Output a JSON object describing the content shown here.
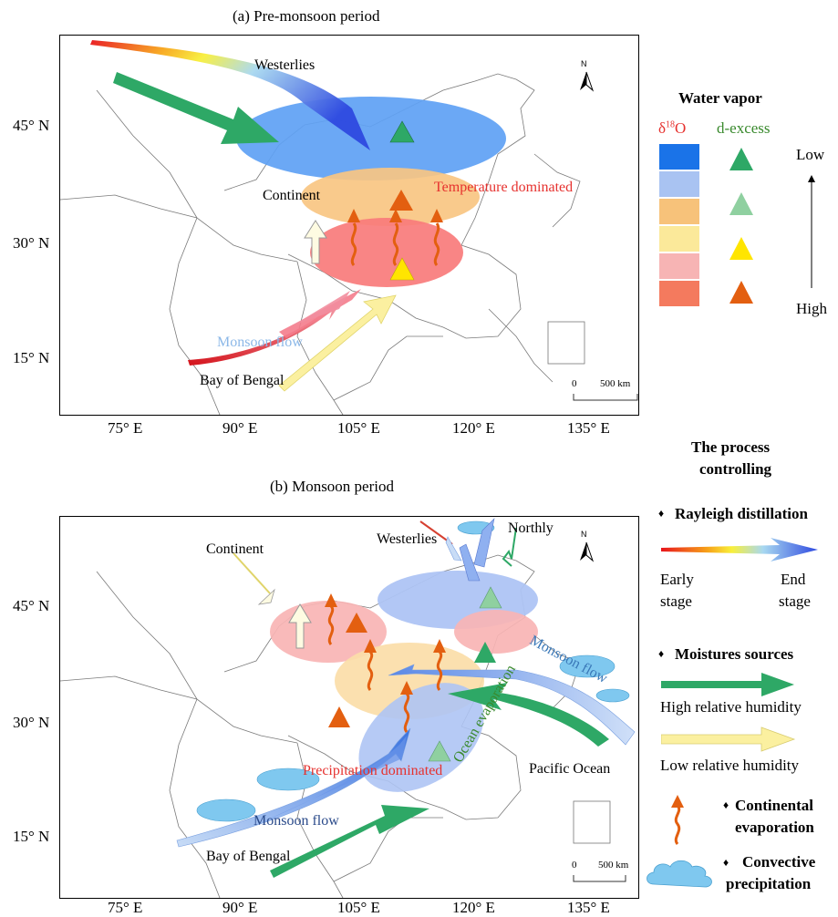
{
  "panel_a": {
    "title": "(a) Pre-monsoon period",
    "y_ticks": [
      "45° N",
      "30° N",
      "15° N"
    ],
    "x_ticks": [
      "75° E",
      "90° E",
      "105° E",
      "120° E",
      "135° E"
    ],
    "labels": {
      "westerlies": "Westerlies",
      "continent": "Continent",
      "temperature": "Temperature dominated",
      "monsoon_flow": "Monsoon flow",
      "bay": "Bay of Bengal"
    },
    "north": "N",
    "scale": {
      "zero": "0",
      "dist": "500 km"
    }
  },
  "panel_b": {
    "title": "(b) Monsoon period",
    "y_ticks": [
      "45° N",
      "30° N",
      "15° N"
    ],
    "x_ticks": [
      "75° E",
      "90° E",
      "105° E",
      "120° E",
      "135° E"
    ],
    "labels": {
      "continent": "Continent",
      "westerlies": "Westerlies",
      "northly": "Northly",
      "monsoon_flow_east": "Monsoon flow",
      "ocean_evap": "Ocean evaporation",
      "precip": "Precipitation dominated",
      "pacific": "Pacific Ocean",
      "monsoon_flow_south": "Monsoon flow",
      "bay": "Bay of Bengal"
    },
    "north": "N",
    "scale": {
      "zero": "0",
      "dist": "500 km"
    }
  },
  "legend": {
    "water_vapor": "Water vapor",
    "d18o_prefix": "δ",
    "d18o_sup": "18",
    "d18o_suffix": "O",
    "dexcess": "d-excess",
    "low": "Low",
    "high": "High",
    "process_title_1": "The process",
    "process_title_2": "controlling",
    "rayleigh": "Rayleigh distillation",
    "early_1": "Early",
    "early_2": "stage",
    "end_1": "End",
    "end_2": "stage",
    "moisture": "Moistures sources",
    "high_rh": "High relative humidity",
    "low_rh": "Low relative humidity",
    "cont_evap_1": "Continental",
    "cont_evap_2": "evaporation",
    "conv_1": "Convective",
    "conv_2": "precipitation",
    "bullet": "♦",
    "colors": {
      "d18o_scale": [
        "#1a73e8",
        "#a9c3f2",
        "#f7c27a",
        "#fbe99a",
        "#f7b4b4",
        "#f47a5e"
      ],
      "dexcess_scale": [
        "#2ea866",
        "#8fd0a0",
        "#ffe500",
        "#e35f10"
      ],
      "high_rh": "#2ea866",
      "low_rh": "#fbf0a0",
      "d18o_label": "#e6312e",
      "dexcess_label": "#3a8a2e"
    }
  }
}
